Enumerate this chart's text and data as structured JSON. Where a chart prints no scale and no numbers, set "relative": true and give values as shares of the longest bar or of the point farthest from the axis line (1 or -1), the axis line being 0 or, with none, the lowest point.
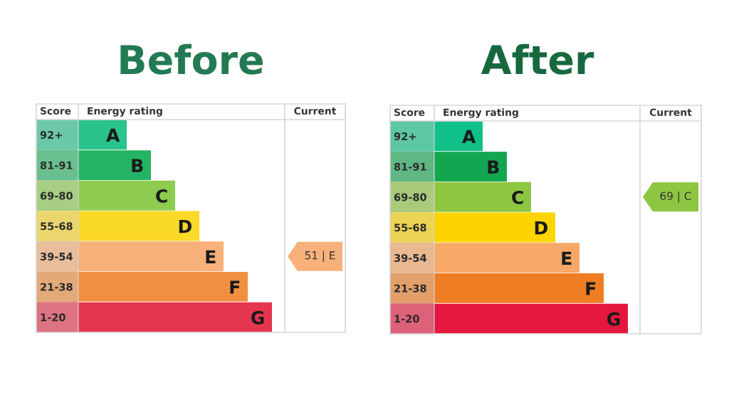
{
  "chart_data": [
    {
      "type": "bar",
      "orientation": "horizontal",
      "relative": true,
      "title": "Before",
      "ylabel": "Score",
      "xlabel": "Energy rating",
      "y2label": "Current",
      "categories": [
        "92+",
        "81-91",
        "69-80",
        "55-68",
        "39-54",
        "21-38",
        "1-20"
      ],
      "y2_categories": [
        null,
        null,
        null,
        null,
        "51 | E",
        null,
        null
      ],
      "values": [
        0.25,
        0.375,
        0.5,
        0.625,
        0.75,
        0.875,
        1
      ],
      "colors": [
        "#29c48c",
        "#25b365",
        "#8dcc4f",
        "#fbd928",
        "#f8b17a",
        "#f08f3f",
        "#e6354f"
      ],
      "annotations": [
        {
          "text": "A",
          "x": 0.25,
          "y": "92+"
        },
        {
          "text": "B",
          "x": 0.375,
          "y": "81-91"
        },
        {
          "text": "C",
          "x": 0.5,
          "y": "69-80"
        },
        {
          "text": "D",
          "x": 0.625,
          "y": "55-68"
        },
        {
          "text": "E",
          "x": 0.75,
          "y": "39-54"
        },
        {
          "text": "F",
          "x": 0.875,
          "y": "21-38"
        },
        {
          "text": "G",
          "x": 1,
          "y": "1-20"
        }
      ]
    },
    {
      "type": "bar",
      "orientation": "horizontal",
      "relative": true,
      "title": "After",
      "ylabel": "Score",
      "xlabel": "Energy rating",
      "y2label": "Current",
      "categories": [
        "92+",
        "81-91",
        "69-80",
        "55-68",
        "39-54",
        "21-38",
        "1-20"
      ],
      "y2_categories": [
        null,
        null,
        "69 | C",
        null,
        null,
        null,
        null
      ],
      "values": [
        0.25,
        0.375,
        0.5,
        0.625,
        0.75,
        0.875,
        1
      ],
      "colors": [
        "#0fc088",
        "#13a650",
        "#8dc640",
        "#fdd400",
        "#f7a766",
        "#ee7d23",
        "#e5173f"
      ],
      "annotations": [
        {
          "text": "A",
          "x": 0.25,
          "y": "92+"
        },
        {
          "text": "B",
          "x": 0.375,
          "y": "81-91"
        },
        {
          "text": "C",
          "x": 0.5,
          "y": "69-80"
        },
        {
          "text": "D",
          "x": 0.625,
          "y": "55-68"
        },
        {
          "text": "E",
          "x": 0.75,
          "y": "39-54"
        },
        {
          "text": "F",
          "x": 0.875,
          "y": "21-38"
        },
        {
          "text": "G",
          "x": 1,
          "y": "1-20"
        }
      ]
    }
  ]
}
